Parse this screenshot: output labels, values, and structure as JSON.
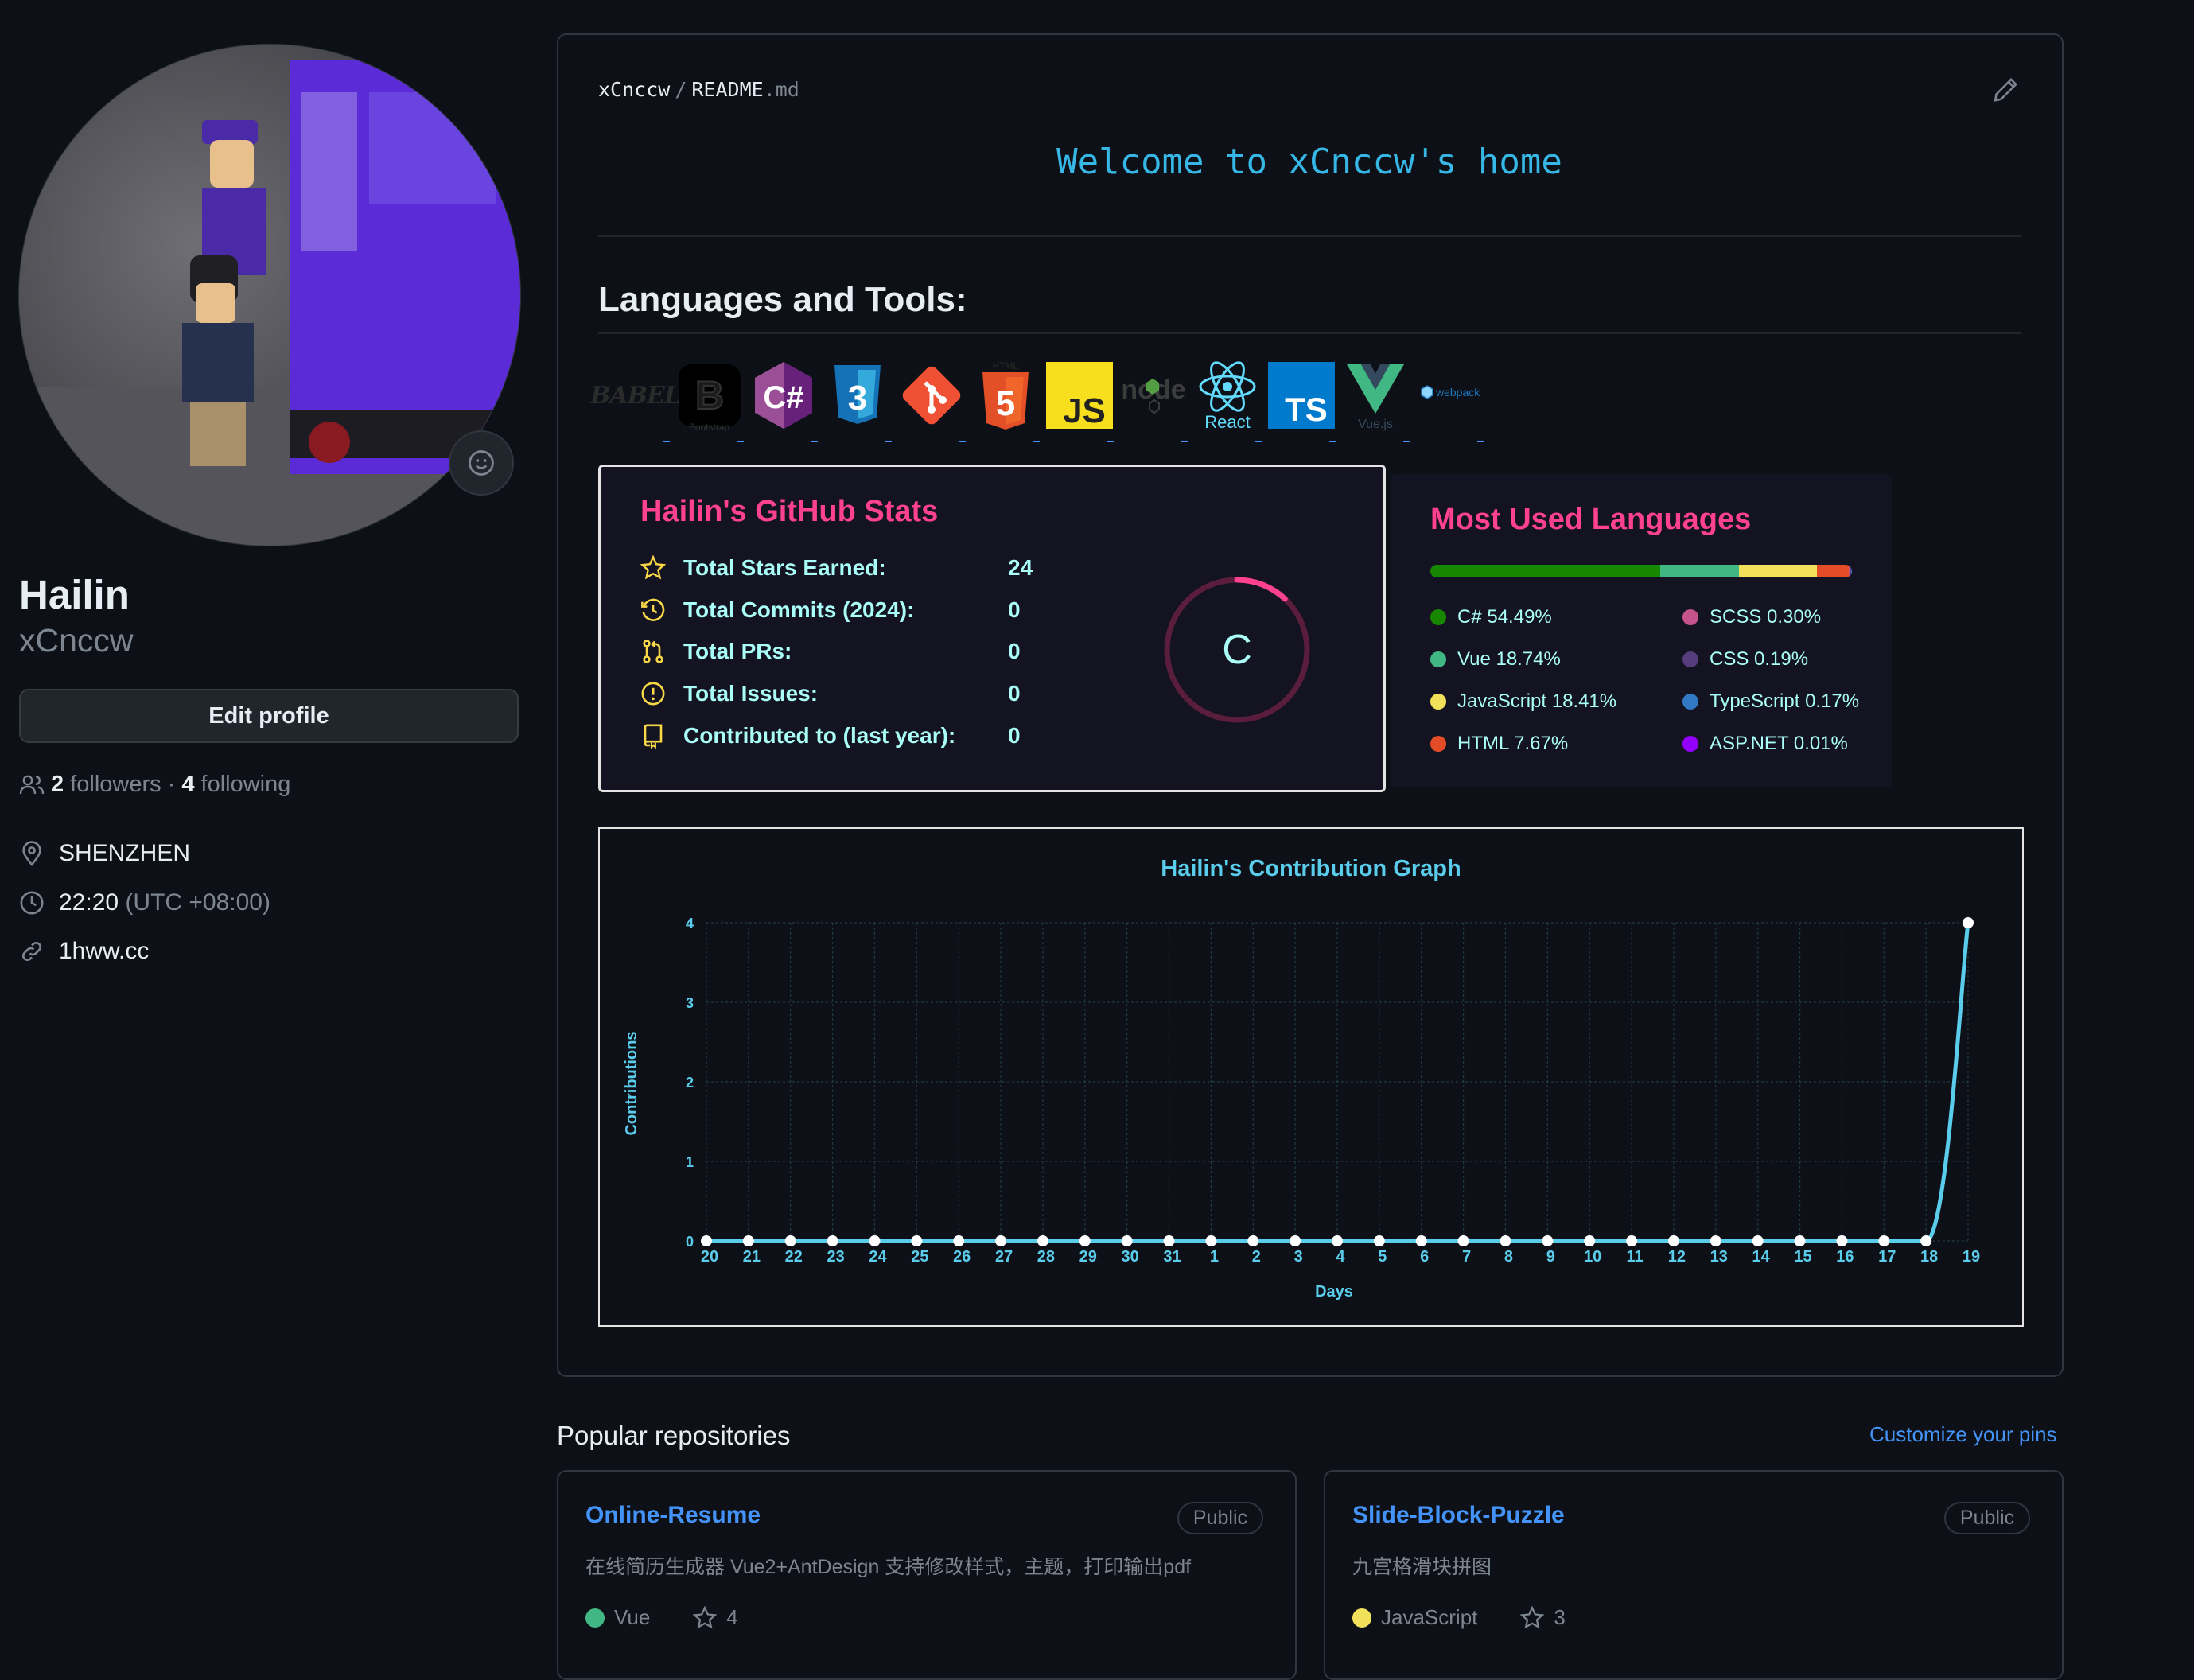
{
  "profile": {
    "full_name": "Hailin",
    "login": "xCnccw",
    "edit_label": "Edit profile",
    "followers_count": "2",
    "followers_label": "followers",
    "separator": "·",
    "following_count": "4",
    "following_label": "following",
    "location": "SHENZHEN",
    "local_time": "22:20",
    "timezone": "(UTC +08:00)",
    "website": "1hww.cc"
  },
  "readme": {
    "owner": "xCnccw",
    "sep": "/",
    "file_base": "README",
    "file_ext": ".md",
    "welcome": "Welcome to xCnccw's home",
    "tools_title": "Languages and Tools:",
    "tools": [
      "babel",
      "bootstrap",
      "csharp",
      "css3",
      "git",
      "html5",
      "javascript",
      "nodejs",
      "react",
      "typescript",
      "vuejs",
      "webpack"
    ],
    "tool_labels": {
      "babel": "BABEL",
      "bootstrap": "Bootstrap",
      "csharp": "C#",
      "css3": "3",
      "html5": "5",
      "html5_top": "HTML",
      "javascript": "JS",
      "nodejs": "node",
      "react": "React",
      "typescript": "TS",
      "vuejs": "Vue.js",
      "webpack": "webpack"
    }
  },
  "stats": {
    "title": "Hailin's GitHub Stats",
    "rows": [
      {
        "icon": "star-icon",
        "label": "Total Stars Earned:",
        "value": "24"
      },
      {
        "icon": "history-icon",
        "label": "Total Commits (2024):",
        "value": "0"
      },
      {
        "icon": "pull-request-icon",
        "label": "Total PRs:",
        "value": "0"
      },
      {
        "icon": "issue-icon",
        "label": "Total Issues:",
        "value": "0"
      },
      {
        "icon": "repo-icon",
        "label": "Contributed to (last year):",
        "value": "0"
      }
    ],
    "rank": "C",
    "rank_progress": 0.12,
    "colors": {
      "title": "#fe428e",
      "text": "#a9fef7",
      "icon": "#f8d847",
      "bg": "#141321"
    }
  },
  "languages": {
    "title": "Most Used Languages",
    "items": [
      {
        "name": "C#",
        "pct": "54.49%",
        "share": 54.49,
        "color": "#178600"
      },
      {
        "name": "Vue",
        "pct": "18.74%",
        "share": 18.74,
        "color": "#41b883"
      },
      {
        "name": "JavaScript",
        "pct": "18.41%",
        "share": 18.41,
        "color": "#f1e05a"
      },
      {
        "name": "HTML",
        "pct": "7.67%",
        "share": 7.67,
        "color": "#e34c26"
      },
      {
        "name": "SCSS",
        "pct": "0.30%",
        "share": 0.3,
        "color": "#c6538c"
      },
      {
        "name": "CSS",
        "pct": "0.19%",
        "share": 0.19,
        "color": "#563d7c"
      },
      {
        "name": "TypeScript",
        "pct": "0.17%",
        "share": 0.17,
        "color": "#3178c6"
      },
      {
        "name": "ASP.NET",
        "pct": "0.01%",
        "share": 0.01,
        "color": "#9400ff"
      }
    ]
  },
  "chart_data": {
    "type": "line",
    "title": "Hailin's Contribution Graph",
    "xlabel": "Days",
    "ylabel": "Contributions",
    "x": [
      "20",
      "21",
      "22",
      "23",
      "24",
      "25",
      "26",
      "27",
      "28",
      "29",
      "30",
      "31",
      "1",
      "2",
      "3",
      "4",
      "5",
      "6",
      "7",
      "8",
      "9",
      "10",
      "11",
      "12",
      "13",
      "14",
      "15",
      "16",
      "17",
      "18",
      "19"
    ],
    "series": [
      {
        "values": [
          0,
          0,
          0,
          0,
          0,
          0,
          0,
          0,
          0,
          0,
          0,
          0,
          0,
          0,
          0,
          0,
          0,
          0,
          0,
          0,
          0,
          0,
          0,
          0,
          0,
          0,
          0,
          0,
          0,
          0,
          4
        ]
      }
    ],
    "ylim": [
      0,
      4
    ],
    "yticks": [
      0,
      1,
      2,
      3,
      4
    ],
    "grid": true,
    "colors": {
      "line": "#5bcdec",
      "point": "#ffffff",
      "axis_text": "#5bcdec",
      "title": "#5bcdec",
      "grid": "#1f3a3f"
    }
  },
  "popular": {
    "title": "Popular repositories",
    "customize": "Customize your pins",
    "repos": [
      {
        "name": "Online-Resume",
        "visibility": "Public",
        "description": "在线简历生成器 Vue2+AntDesign 支持修改样式，主题，打印输出pdf",
        "language": "Vue",
        "lang_color": "#41b883",
        "stars": "4"
      },
      {
        "name": "Slide-Block-Puzzle",
        "visibility": "Public",
        "description": "九宫格滑块拼图",
        "language": "JavaScript",
        "lang_color": "#f1e05a",
        "stars": "3"
      }
    ]
  }
}
